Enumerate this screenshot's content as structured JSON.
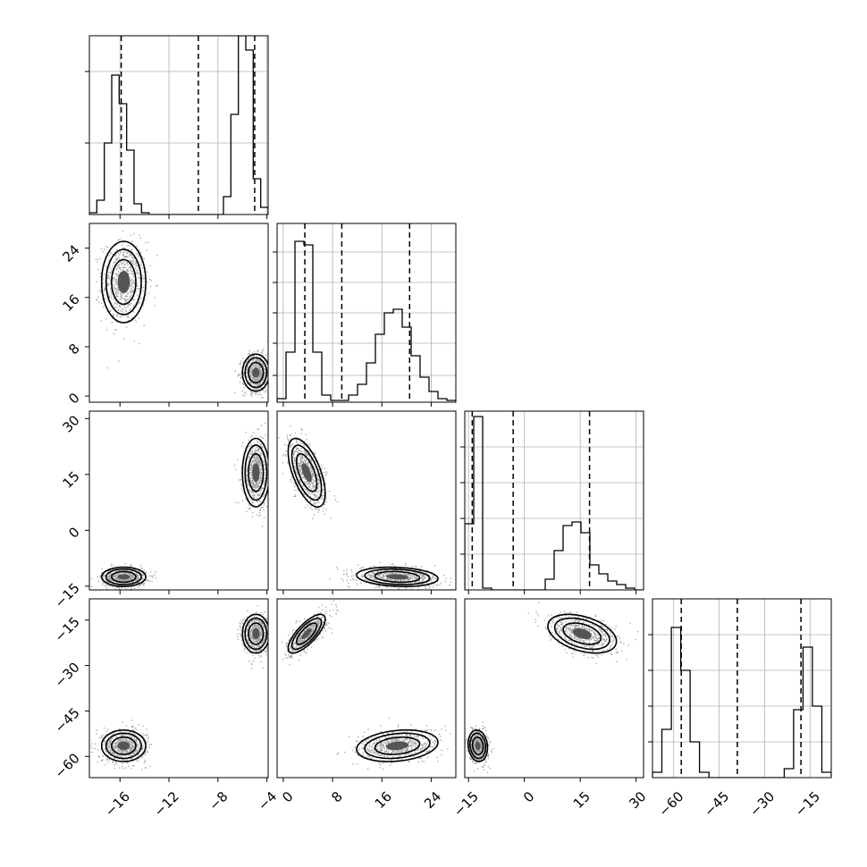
{
  "chart_data": {
    "type": "corner",
    "title": "",
    "grid": true,
    "colors": {
      "ink": "#000000",
      "grid": "#b0b0b0",
      "scatter": "#333333"
    },
    "params": [
      {
        "range": [
          -18.5,
          -3.9
        ],
        "ticks": [
          -16,
          -12,
          -8,
          -4
        ],
        "tick_labels": [
          "−16",
          "−12",
          "−8",
          "−4"
        ],
        "quantiles": [
          -15.9,
          -9.6,
          -5.0
        ],
        "hist_y": [
          0.01,
          0.08,
          0.4,
          0.78,
          0.62,
          0.36,
          0.06,
          0.01,
          0,
          0,
          0,
          0,
          0,
          0,
          0,
          0,
          0,
          0,
          0.1,
          0.56,
          1.0,
          0.92,
          0.2,
          0.04
        ],
        "hist_yticks": [
          0.4,
          0.8
        ]
      },
      {
        "range": [
          -1,
          28
        ],
        "ticks": [
          0,
          8,
          16,
          24
        ],
        "tick_labels": [
          "0",
          "8",
          "16",
          "24"
        ],
        "quantiles": [
          3.5,
          9.5,
          20.5
        ],
        "hist_y": [
          0.02,
          0.28,
          0.9,
          0.88,
          0.28,
          0.04,
          0.01,
          0.01,
          0.04,
          0.1,
          0.22,
          0.38,
          0.5,
          0.52,
          0.42,
          0.26,
          0.14,
          0.06,
          0.02,
          0.01
        ],
        "hist_yticks": [
          0.15,
          0.33,
          0.5,
          0.67,
          0.84
        ]
      },
      {
        "range": [
          -16,
          32
        ],
        "ticks": [
          -15,
          0,
          15,
          30
        ],
        "tick_labels": [
          "−15",
          "0",
          "15",
          "30"
        ],
        "quantiles": [
          -14,
          -3,
          17.5
        ],
        "hist_y": [
          0.37,
          0.97,
          0.01,
          0,
          0,
          0,
          0,
          0,
          0,
          0.06,
          0.22,
          0.36,
          0.38,
          0.32,
          0.14,
          0.09,
          0.05,
          0.03,
          0.01,
          0
        ],
        "hist_yticks": [
          0.2,
          0.4,
          0.6,
          0.8
        ]
      },
      {
        "range": [
          -67,
          -8
        ],
        "ticks": [
          -60,
          -45,
          -30,
          -15
        ],
        "tick_labels": [
          "−60",
          "−45",
          "−30",
          "−15"
        ],
        "quantiles": [
          -57.5,
          -39,
          -18
        ],
        "hist_y": [
          0.03,
          0.27,
          0.84,
          0.6,
          0.2,
          0.03,
          0,
          0,
          0,
          0,
          0,
          0,
          0,
          0,
          0.05,
          0.38,
          0.73,
          0.4,
          0.03
        ],
        "hist_yticks": [
          0.2,
          0.4,
          0.6,
          0.8
        ]
      }
    ],
    "modes": [
      {
        "weight": 0.5,
        "means": [
          -15.7,
          18.5,
          -12.5,
          -56.5
        ],
        "sds": [
          0.9,
          3.3,
          1.3,
          2.6
        ]
      },
      {
        "weight": 0.5,
        "means": [
          -4.9,
          3.8,
          15.5,
          -19.5
        ],
        "sds": [
          0.55,
          1.5,
          4.6,
          3.2
        ]
      }
    ],
    "correlations": [
      [
        1,
        2,
        -0.6
      ],
      [
        1,
        3,
        0.75
      ],
      [
        2,
        3,
        -0.4
      ]
    ]
  }
}
